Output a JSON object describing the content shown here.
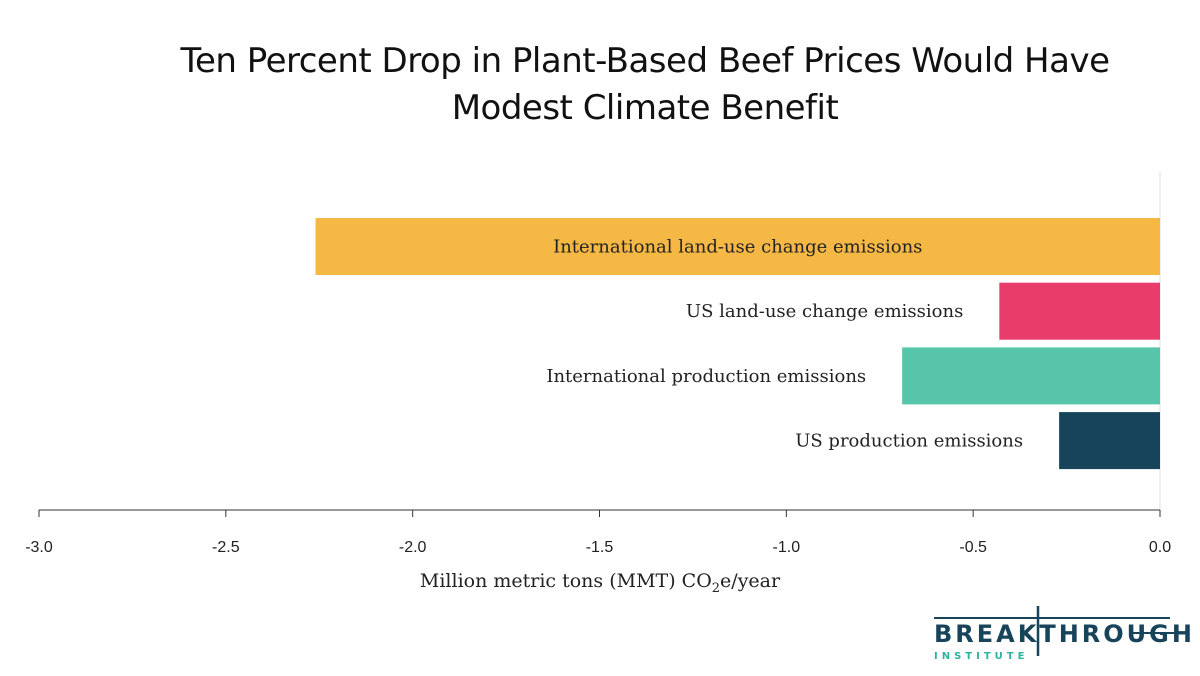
{
  "chart_data": {
    "type": "bar",
    "orientation": "horizontal",
    "title": "Ten Percent Drop in Plant-Based Beef Prices Would Have Modest Climate Benefit",
    "title_lines": [
      "Ten Percent Drop in Plant-Based Beef Prices Would Have",
      "Modest Climate Benefit"
    ],
    "categories": [
      "International land-use change emissions",
      "US land-use change emissions",
      "International production emissions",
      "US production emissions"
    ],
    "values": [
      -2.26,
      -0.43,
      -0.69,
      -0.27
    ],
    "colors": [
      "#F6B844",
      "#E83D6B",
      "#57C5A9",
      "#17445A"
    ],
    "xlabel": "Million metric tons (MMT) CO",
    "xlabel_sub": "2",
    "xlabel_tail": "e/year",
    "xlim": [
      -3.0,
      0.0
    ],
    "xticks": [
      -3.0,
      -2.5,
      -2.0,
      -1.5,
      -1.0,
      -0.5,
      0.0
    ],
    "xtick_labels": [
      "-3.0",
      "-2.5",
      "-2.0",
      "-1.5",
      "-1.0",
      "-0.5",
      "0.0"
    ],
    "grid": false
  },
  "logo": {
    "name": "BREAKTHROUGH",
    "sub": "INSTITUTE"
  }
}
